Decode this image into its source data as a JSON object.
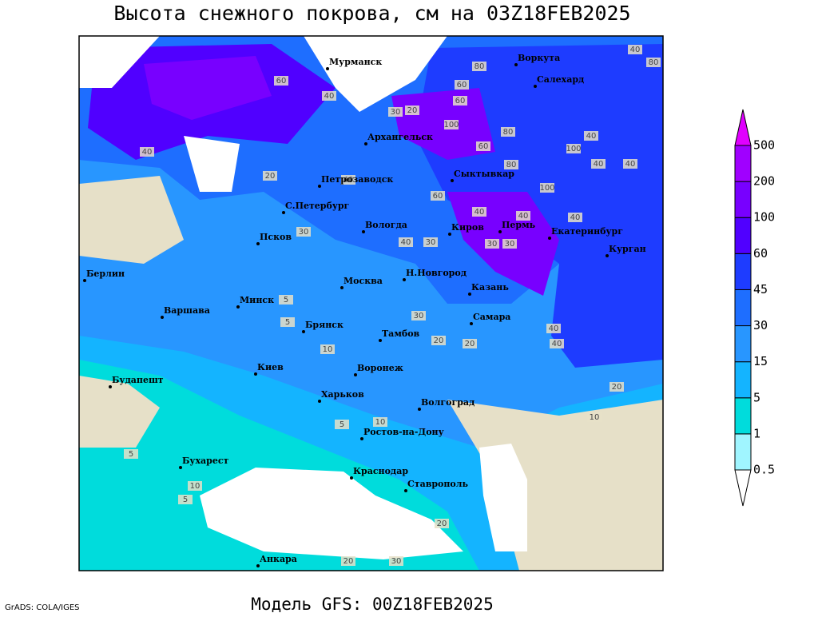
{
  "title": "Высота снежного покрова, см на 03Z18FEB2025",
  "model_caption": "Модель GFS: 00Z18FEB2025",
  "credit": "GrADS: COLA/IGES",
  "colorbar": {
    "levels": [
      0.5,
      1,
      5,
      15,
      30,
      45,
      60,
      100,
      200,
      500
    ],
    "colors": [
      "#ffffff",
      "#a0f5ff",
      "#00dcdc",
      "#14b4ff",
      "#2896ff",
      "#1e6eff",
      "#1e3cff",
      "#5000ff",
      "#7800ff",
      "#a000ff",
      "#e000ff"
    ]
  },
  "cities": [
    "Мурманск",
    "Воркута",
    "Салехард",
    "Архангельск",
    "Сыктывкар",
    "Петрозаводск",
    "С.Петербург",
    "Вологда",
    "Киров",
    "Пермь",
    "Екатеринбург",
    "Курган",
    "Псков",
    "Берлин",
    "Н.Новгород",
    "Казань",
    "Москва",
    "Минск",
    "Варшава",
    "Самара",
    "Брянск",
    "Тамбов",
    "Киев",
    "Воронеж",
    "Будапешт",
    "Харьков",
    "Волгоград",
    "Ростов-на-Дону",
    "Бухарест",
    "Краснодар",
    "Ставрополь",
    "Анкара"
  ],
  "contour_labels": [
    40,
    80,
    60,
    60,
    80,
    40,
    30,
    20,
    40,
    60,
    100,
    60,
    80,
    100,
    40,
    40,
    40,
    20,
    40,
    60,
    40,
    40,
    30,
    30,
    40,
    100,
    80,
    30,
    40,
    30,
    5,
    5,
    10,
    20,
    30,
    40,
    40,
    20,
    20,
    5,
    10,
    10,
    5,
    20,
    20,
    5,
    10,
    30
  ]
}
